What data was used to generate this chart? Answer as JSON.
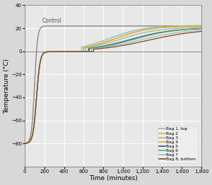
{
  "title": "",
  "xlabel": "Time (minutes)",
  "ylabel": "Temperature (°C)",
  "xlim": [
    0,
    1800
  ],
  "ylim": [
    -100,
    40
  ],
  "yticks": [
    -80,
    -60,
    -40,
    -20,
    0,
    20,
    40
  ],
  "xticks": [
    0,
    200,
    400,
    600,
    800,
    1000,
    1200,
    1400,
    1600,
    1800
  ],
  "control_label": "Control",
  "control_color": "#888888",
  "series": [
    {
      "label": "Bag 1, top",
      "color": "#7ab8d9",
      "plateau_end": 580,
      "rise_mid": 280,
      "rise_k": 0.0055,
      "final": 22.5
    },
    {
      "label": "Bag 2",
      "color": "#f0a050",
      "plateau_end": 600,
      "rise_mid": 310,
      "rise_k": 0.0055,
      "final": 22.0
    },
    {
      "label": "Bag 3",
      "color": "#aaaaaa",
      "plateau_end": 620,
      "rise_mid": 350,
      "rise_k": 0.005,
      "final": 21.0
    },
    {
      "label": "Bag 4",
      "color": "#d4b800",
      "plateau_end": 600,
      "rise_mid": 320,
      "rise_k": 0.0055,
      "final": 22.0
    },
    {
      "label": "Bag 5",
      "color": "#2255a0",
      "plateau_end": 650,
      "rise_mid": 420,
      "rise_k": 0.0045,
      "final": 20.5
    },
    {
      "label": "Bag 6",
      "color": "#6aaa40",
      "plateau_end": 660,
      "rise_mid": 440,
      "rise_k": 0.0045,
      "final": 20.5
    },
    {
      "label": "Bag 7",
      "color": "#88c0dd",
      "plateau_end": 680,
      "rise_mid": 500,
      "rise_k": 0.004,
      "final": 20.0
    },
    {
      "label": "Bag 8, bottom",
      "color": "#8B4010",
      "plateau_end": 700,
      "rise_mid": 560,
      "rise_k": 0.0038,
      "final": 19.5
    }
  ],
  "freeze_val": -80.0,
  "freeze_k": 0.055,
  "freeze_mid": 120,
  "plateau_val": -0.3,
  "background_color": "#e8e8e8",
  "grid_color": "#ffffff",
  "fig_bg": "#d8d8d8"
}
